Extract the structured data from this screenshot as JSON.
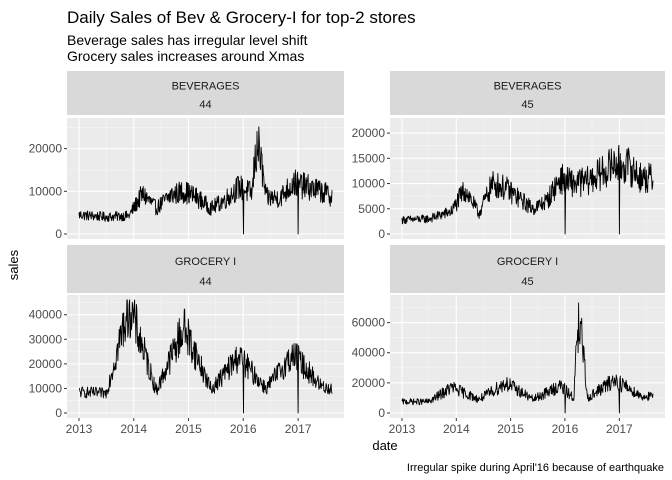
{
  "chart_data": {
    "type": "line",
    "title": "Daily Sales of Bev & Grocery-I for top-2 stores",
    "subtitle_lines": [
      "Beverage sales has irregular level shift",
      "Grocery sales increases around Xmas"
    ],
    "xlabel": "date",
    "ylabel": "sales",
    "caption": "Irregular spike during April'16 because of earthquake",
    "x_ticks": [
      "2013",
      "2014",
      "2015",
      "2016",
      "2017"
    ],
    "x_range": [
      "2013-01-01",
      "2017-08-15"
    ],
    "grid": true,
    "facet_layout": "2x2, facet_wrap(family ~ store), free y scales",
    "panels": [
      {
        "family": "BEVERAGES",
        "store": "44",
        "ylim": [
          0,
          26000
        ],
        "y_ticks": [
          0,
          10000,
          20000
        ],
        "x": [
          "2013-01",
          "2013-07",
          "2013-12",
          "2014-03",
          "2014-06",
          "2014-09",
          "2014-12",
          "2015-03",
          "2015-06",
          "2015-09",
          "2015-12",
          "2016-03",
          "2016-04",
          "2016-06",
          "2016-09",
          "2016-12",
          "2017-03",
          "2017-06",
          "2017-08"
        ],
        "values": [
          4500,
          4000,
          4300,
          9500,
          6000,
          9000,
          10000,
          8500,
          6000,
          8000,
          11000,
          9500,
          24000,
          8500,
          8500,
          12000,
          11000,
          10000,
          9000
        ]
      },
      {
        "family": "BEVERAGES",
        "store": "45",
        "ylim": [
          0,
          22000
        ],
        "y_ticks": [
          0,
          5000,
          10000,
          15000,
          20000
        ],
        "x": [
          "2013-01",
          "2013-07",
          "2013-12",
          "2014-03",
          "2014-06",
          "2014-09",
          "2014-12",
          "2015-03",
          "2015-06",
          "2015-09",
          "2015-12",
          "2016-03",
          "2016-06",
          "2016-09",
          "2016-12",
          "2017-03",
          "2017-06",
          "2017-08"
        ],
        "values": [
          2800,
          3000,
          4500,
          9000,
          4000,
          10000,
          9000,
          7000,
          5000,
          6500,
          11000,
          10000,
          10500,
          12000,
          14000,
          13500,
          11000,
          11000
        ]
      },
      {
        "family": "GROCERY I",
        "store": "44",
        "ylim": [
          0,
          46000
        ],
        "y_ticks": [
          0,
          10000,
          20000,
          30000,
          40000
        ],
        "x": [
          "2013-01",
          "2013-07",
          "2013-12",
          "2014-06",
          "2014-12",
          "2015-06",
          "2015-12",
          "2016-06",
          "2016-12",
          "2017-06",
          "2017-08"
        ],
        "values": [
          8500,
          8000,
          44000,
          9000,
          35000,
          9500,
          23000,
          10000,
          24000,
          11000,
          10000
        ]
      },
      {
        "family": "GROCERY I",
        "store": "45",
        "ylim": [
          0,
          75000
        ],
        "y_ticks": [
          0,
          20000,
          40000,
          60000
        ],
        "x": [
          "2013-01",
          "2013-07",
          "2013-12",
          "2014-06",
          "2014-12",
          "2015-06",
          "2015-12",
          "2016-03",
          "2016-04",
          "2016-06",
          "2016-12",
          "2017-06",
          "2017-08"
        ],
        "values": [
          7500,
          7500,
          17000,
          9000,
          20000,
          9000,
          18000,
          10000,
          73000,
          10000,
          22000,
          11000,
          11000
        ]
      }
    ]
  }
}
